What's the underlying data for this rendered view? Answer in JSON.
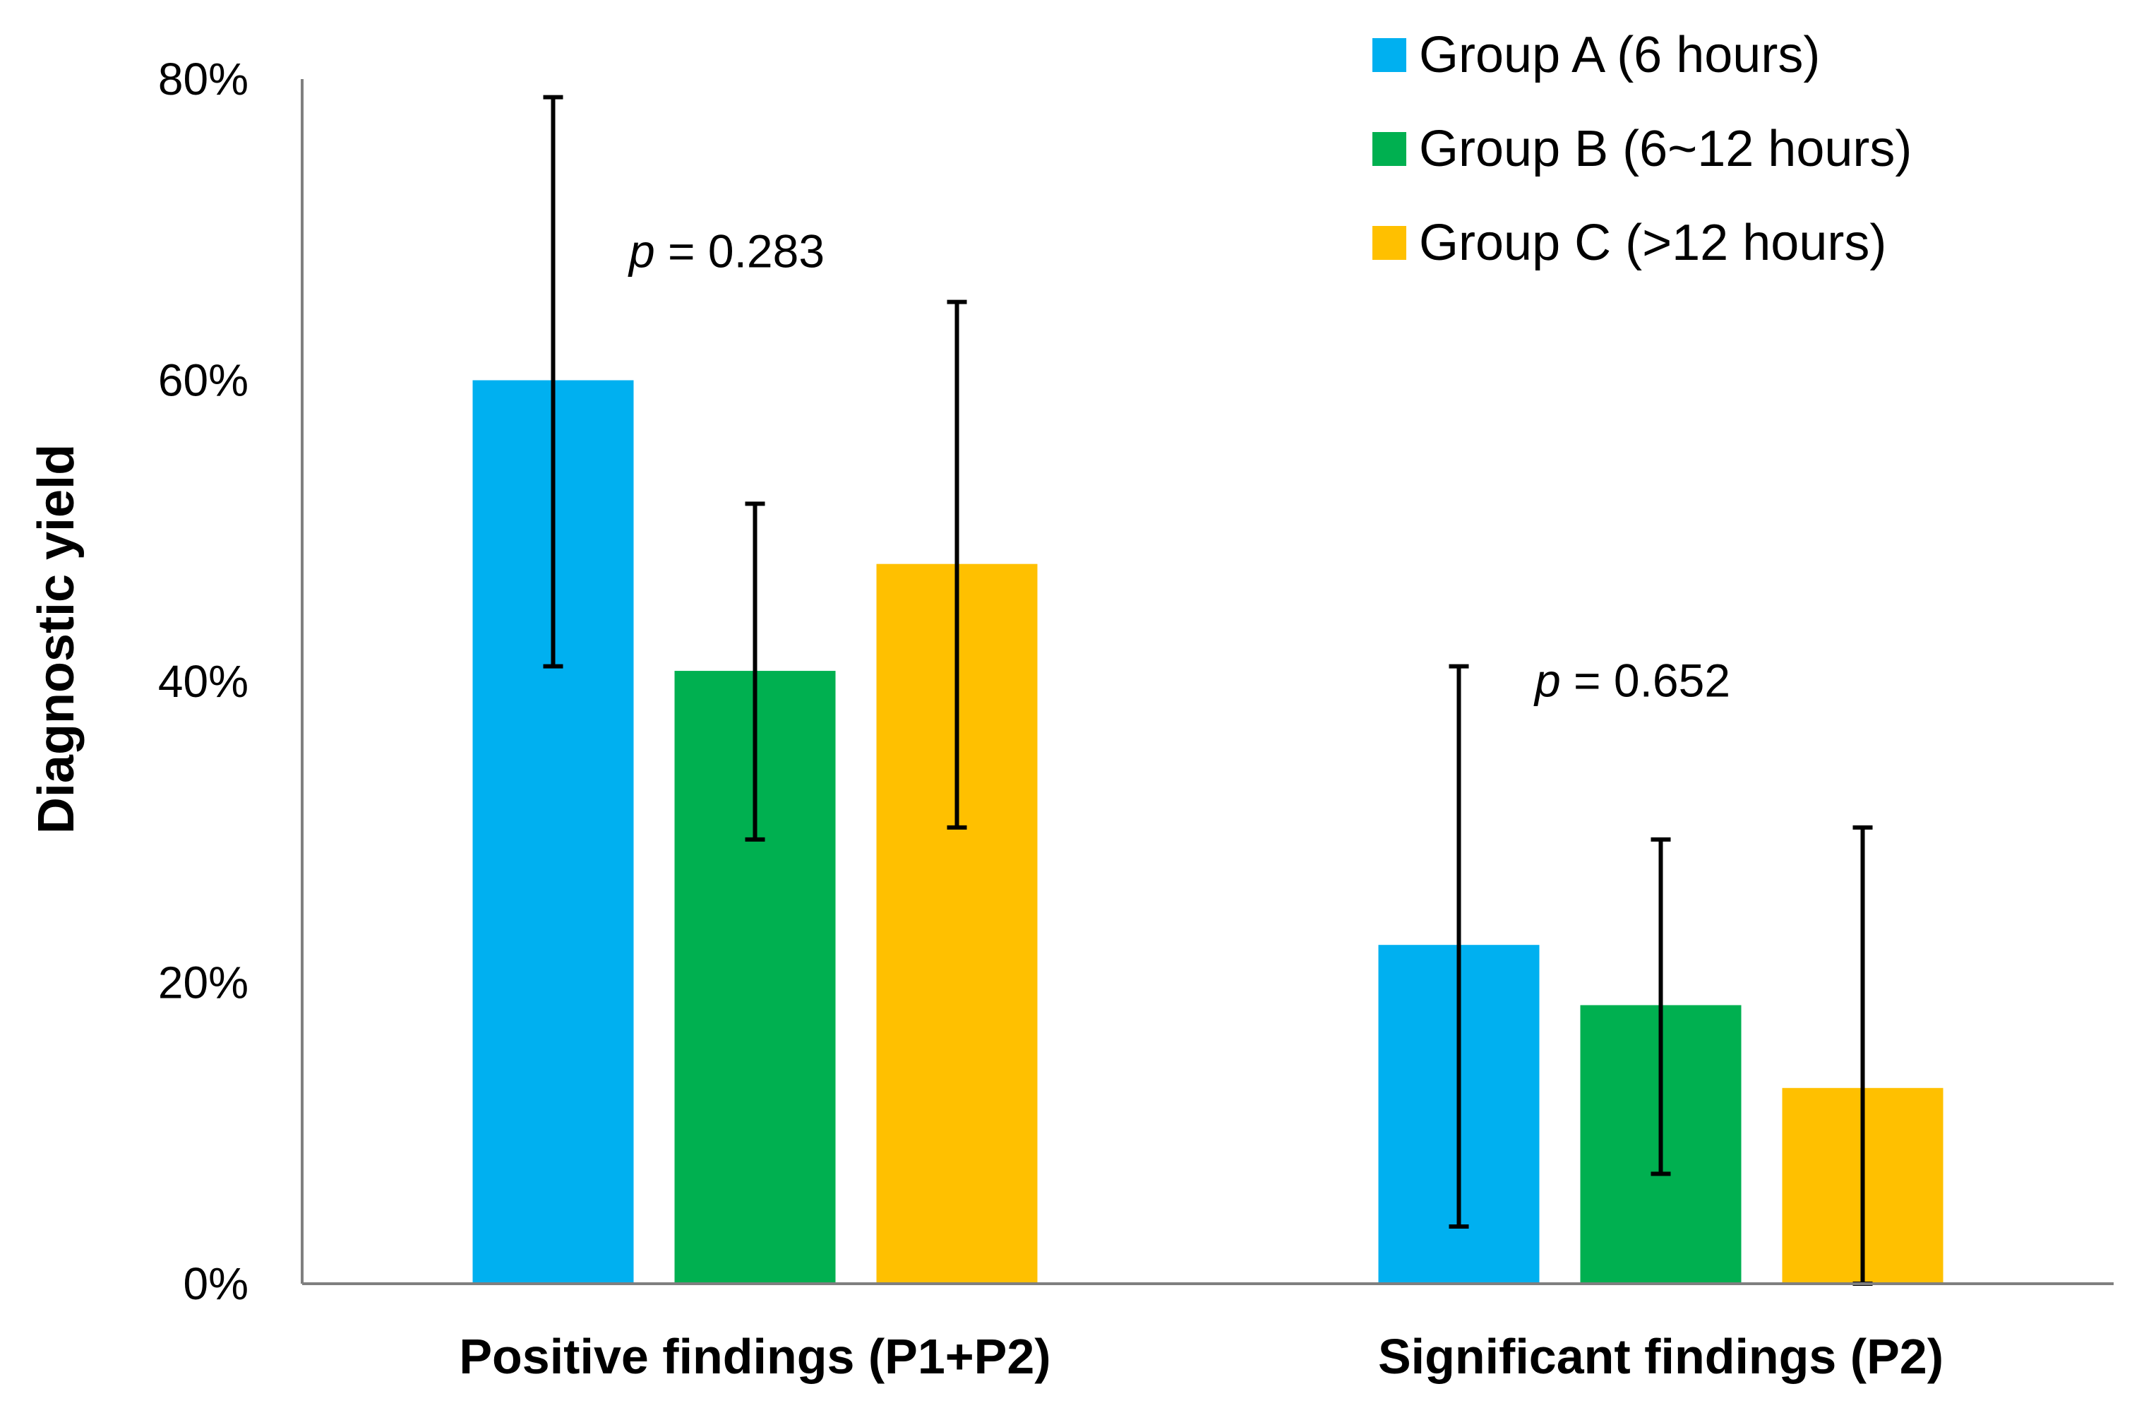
{
  "chart_data": {
    "type": "bar",
    "title": "",
    "xlabel": "",
    "ylabel": "Diagnostic yield",
    "ylim": [
      0,
      80
    ],
    "yticks": [
      0,
      20,
      40,
      60,
      80
    ],
    "ytick_labels": [
      "0%",
      "20%",
      "40%",
      "60%",
      "80%"
    ],
    "grid": false,
    "legend_position": "top-right",
    "categories": [
      "Positive findings (P1+P2)",
      "Significant findings (P2)"
    ],
    "series": [
      {
        "name": "Group A (6 hours)",
        "color": "#00B0F0",
        "values": [
          60.0,
          22.5
        ],
        "error_low": [
          41.0,
          3.8
        ],
        "error_high": [
          78.8,
          41.0
        ]
      },
      {
        "name": "Group B (6~12 hours)",
        "color": "#00B050",
        "values": [
          40.7,
          18.5
        ],
        "error_low": [
          29.5,
          7.3
        ],
        "error_high": [
          51.8,
          29.5
        ]
      },
      {
        "name": "Group C (>12 hours)",
        "color": "#FFC000",
        "values": [
          47.8,
          13.0
        ],
        "error_low": [
          30.3,
          0.0
        ],
        "error_high": [
          65.2,
          30.3
        ]
      }
    ],
    "annotations": [
      {
        "category_index": 0,
        "prefix": "p",
        "text": " = 0.283",
        "y_value": 67.5
      },
      {
        "category_index": 1,
        "prefix": "p",
        "text": " = 0.652",
        "y_value": 39.0
      }
    ]
  }
}
